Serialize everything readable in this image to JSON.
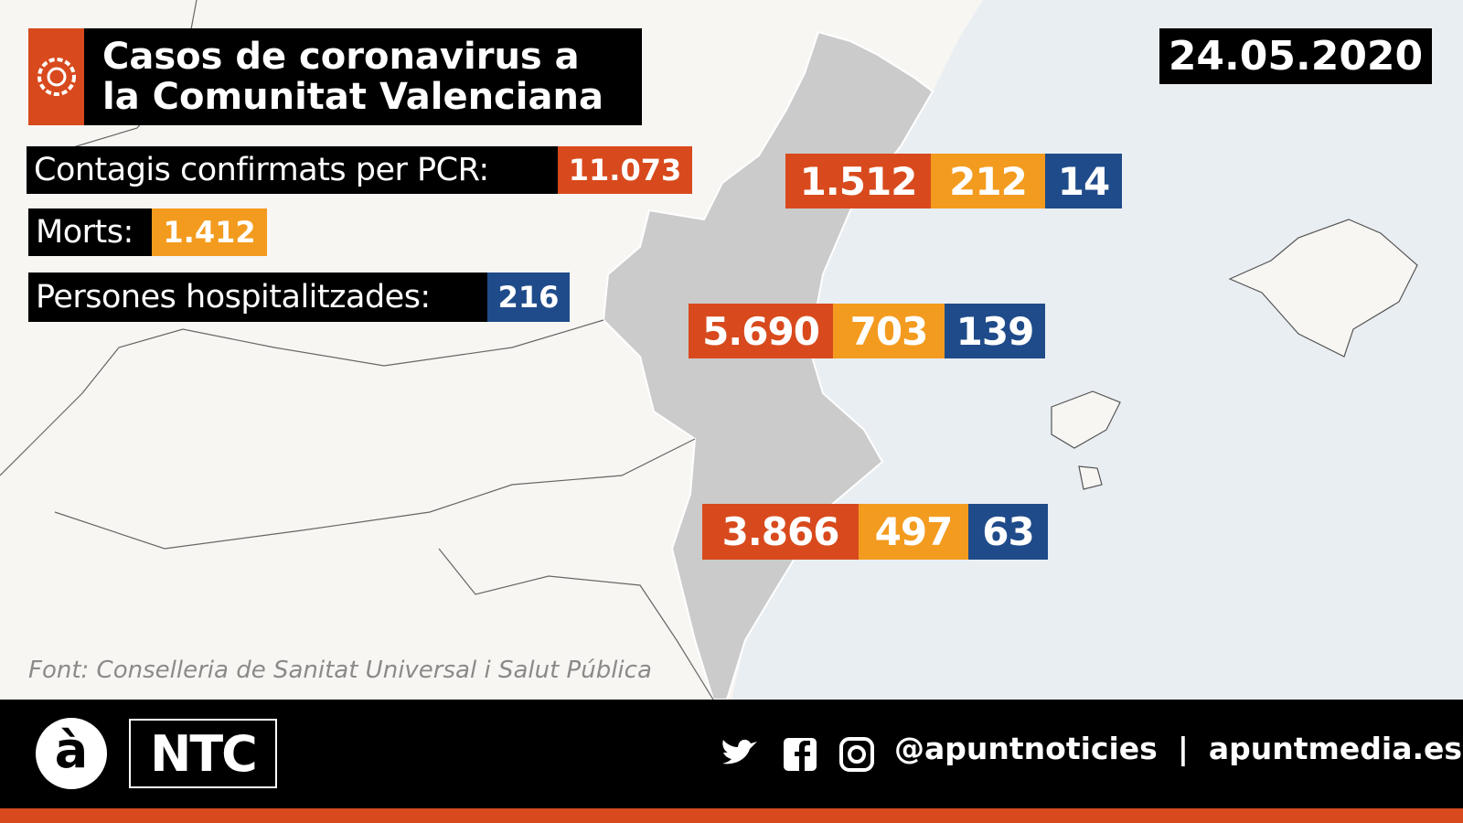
{
  "header": {
    "title": [
      "Casos de coronavirus a",
      "la Comunitat Valenciana"
    ],
    "date": "24.05.2020"
  },
  "totals": [
    {
      "label": "Contagis confirmats per PCR:",
      "value": "11.073"
    },
    {
      "label": "Morts:",
      "value": "1.412"
    },
    {
      "label": "Persones hospitalitzades:",
      "value": "216"
    }
  ],
  "provinces": [
    [
      "1.512",
      "212",
      "14"
    ],
    [
      "5.690",
      "703",
      "139"
    ],
    [
      "3.866",
      "497",
      "63"
    ]
  ],
  "source": "Font: Conselleria de Sanitat Universal i Salut Pública",
  "footer": {
    "logo": "à",
    "brand": "NTC",
    "handle": "@apuntnoticies",
    "separator": "|",
    "site": "apuntmedia.es"
  }
}
